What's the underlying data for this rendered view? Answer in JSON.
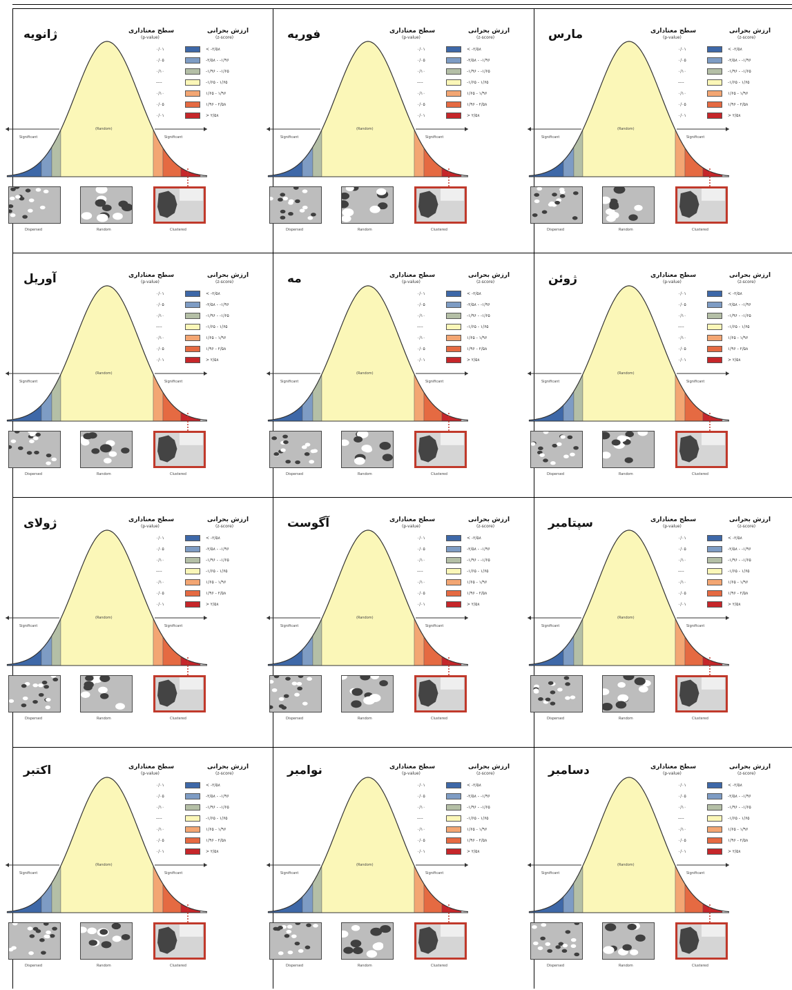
{
  "panels": [
    {
      "month": "مارس"
    },
    {
      "month": "فوریه"
    },
    {
      "month": "ژانویه"
    },
    {
      "month": "ژوئن"
    },
    {
      "month": "مه"
    },
    {
      "month": "آوریل"
    },
    {
      "month": "سپتامبر"
    },
    {
      "month": "آگوست"
    },
    {
      "month": "ژولای"
    },
    {
      "month": "دسامبر"
    },
    {
      "month": "نوامبر"
    },
    {
      "month": "اکتبر"
    }
  ],
  "legend": {
    "pvalue_title": "سطح معناداری",
    "pvalue_sub": "(p-value)",
    "zscore_title": "ارزش بحرانی",
    "zscore_sub": "(z-score)",
    "pvalues": [
      "۰/۰۱",
      "۰/۰۵",
      "۰/۱۰",
      "----",
      "۰/۱۰",
      "۰/۰۵",
      "۰/۰۱"
    ],
    "zscores": [
      "< -۲/۵۸",
      "-۲/۵۸ - -۱/۹۶",
      "-۱/۹۶ - -۱/۶۵",
      "-۱/۶۵ - ۱/۶۵",
      "۱/۶۵ - ۱/۹۶",
      "۱/۹۶ - ۲/۵۸",
      "> ۲/۵۸"
    ],
    "colors": [
      "#3e68a8",
      "#7e9cc4",
      "#b4bfa6",
      "#fbf7b8",
      "#f3a673",
      "#e56a42",
      "#c6262a"
    ]
  },
  "curve": {
    "significant_label": "Significant",
    "random_label": "(Random)",
    "fill_center": "#fbf7b8"
  },
  "patterns": {
    "dispersed": "Dispersed",
    "random": "Random",
    "clustered": "Clustered"
  }
}
